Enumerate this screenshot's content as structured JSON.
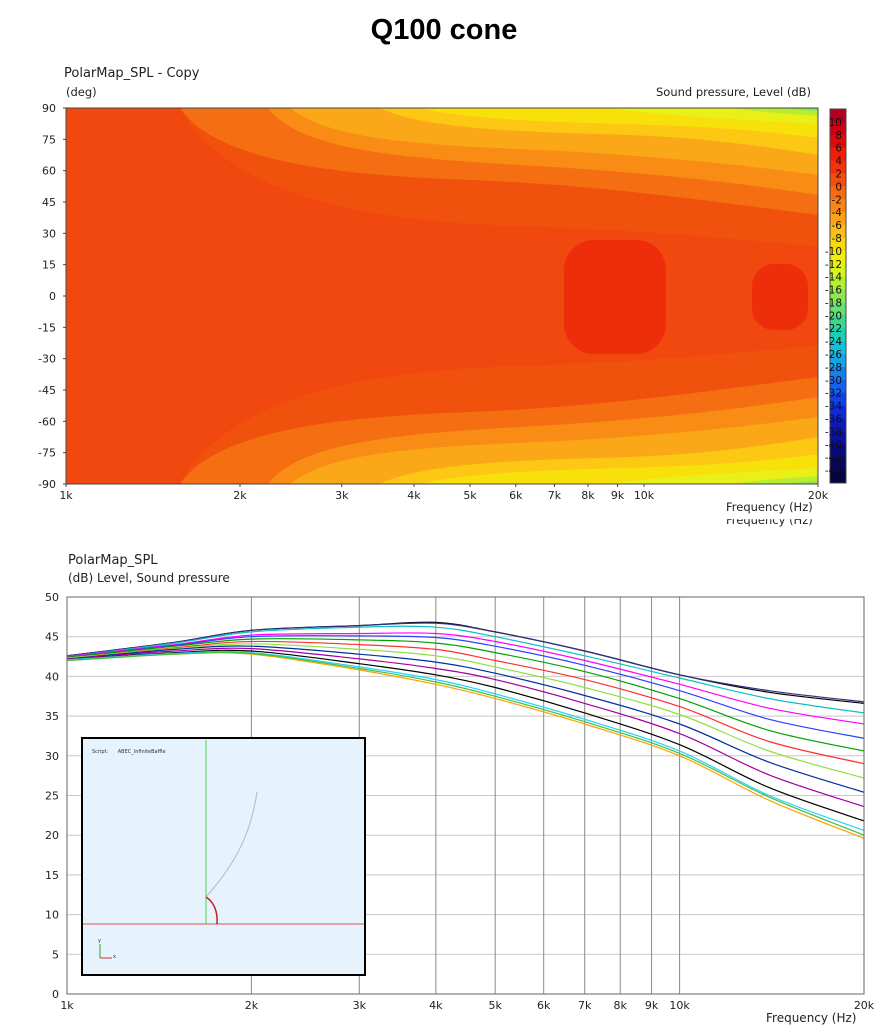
{
  "page_title": "Q100 cone",
  "chart_data": [
    {
      "type": "heatmap",
      "title": "PolarMap_SPL - Copy",
      "ylabel": "(deg)",
      "colorbar_label": "Sound pressure, Level  (dB)",
      "xlabel": "Frequency  (Hz)",
      "xlabel_ghost": "Frequency  (Hz)",
      "x_scale": "log",
      "xlim": [
        1000,
        20000
      ],
      "ylim": [
        -90,
        90
      ],
      "x_ticks": [
        {
          "value": 1000,
          "label": "1k"
        },
        {
          "value": 2000,
          "label": "2k"
        },
        {
          "value": 3000,
          "label": "3k"
        },
        {
          "value": 4000,
          "label": "4k"
        },
        {
          "value": 5000,
          "label": "5k"
        },
        {
          "value": 6000,
          "label": "6k"
        },
        {
          "value": 7000,
          "label": "7k"
        },
        {
          "value": 8000,
          "label": "8k"
        },
        {
          "value": 9000,
          "label": "9k"
        },
        {
          "value": 10000,
          "label": "10k"
        },
        {
          "value": 20000,
          "label": "20k"
        }
      ],
      "y_ticks": [
        90,
        75,
        60,
        45,
        30,
        15,
        0,
        -15,
        -30,
        -45,
        -60,
        -75,
        -90
      ],
      "colorbar_ticks": [
        10,
        8,
        6,
        4,
        2,
        0,
        -2,
        -4,
        -6,
        -8,
        -10,
        -12,
        -14,
        -16,
        -18,
        -20,
        -22,
        -24,
        -26,
        -28,
        -30,
        -32,
        -34,
        -36,
        -38,
        -40,
        -42,
        -44
      ],
      "colorbar_colors": [
        "#b0001c",
        "#cc0014",
        "#e00a0a",
        "#ee1e0a",
        "#f5300a",
        "#f54d0f",
        "#f86a12",
        "#fa8514",
        "#fba318",
        "#fcbd14",
        "#f8d80a",
        "#f0ec0c",
        "#d8f41e",
        "#b4f032",
        "#8ce850",
        "#66e070",
        "#3cd890",
        "#18d0b4",
        "#10c0d8",
        "#14a4e8",
        "#1480ee",
        "#1460f0",
        "#1040e8",
        "#1028d8",
        "#0c18c0",
        "#0a10a0",
        "#080a80",
        "#060660",
        "#040440"
      ],
      "colorbar_range": [
        -46,
        12
      ],
      "grid": false,
      "description_regions": [
        {
          "name": "on-axis low band",
          "level_db": -1
        },
        {
          "name": "hotspot near 8k",
          "level_db": 1
        },
        {
          "name": "hotspot near 16k",
          "level_db": 1
        }
      ]
    },
    {
      "type": "line",
      "title": "PolarMap_SPL",
      "ylabel": "(dB)  Level, Sound pressure",
      "xlabel": "Frequency  (Hz)",
      "x_scale": "log",
      "xlim": [
        1000,
        20000
      ],
      "ylim": [
        0,
        50
      ],
      "y_ticks": [
        0,
        5,
        10,
        15,
        20,
        25,
        30,
        35,
        40,
        45,
        50
      ],
      "x_ticks": [
        {
          "value": 1000,
          "label": "1k"
        },
        {
          "value": 2000,
          "label": "2k"
        },
        {
          "value": 3000,
          "label": "3k"
        },
        {
          "value": 4000,
          "label": "4k"
        },
        {
          "value": 5000,
          "label": "5k"
        },
        {
          "value": 6000,
          "label": "6k"
        },
        {
          "value": 7000,
          "label": "7k"
        },
        {
          "value": 8000,
          "label": "8k"
        },
        {
          "value": 9000,
          "label": "9k"
        },
        {
          "value": 10000,
          "label": "10k"
        },
        {
          "value": 20000,
          "label": "20k"
        }
      ],
      "grid": true,
      "x": [
        1000,
        1500,
        2000,
        3000,
        4000,
        5000,
        7000,
        10000,
        14000,
        20000
      ],
      "series": [
        {
          "color": "#000000",
          "values": [
            42.6,
            44.3,
            45.8,
            46.4,
            46.8,
            45.6,
            43.2,
            40.2,
            38.0,
            36.6
          ]
        },
        {
          "color": "#303080",
          "values": [
            42.6,
            44.3,
            45.8,
            46.4,
            46.7,
            45.6,
            43.2,
            40.2,
            38.2,
            36.8
          ]
        },
        {
          "color": "#10c0c0",
          "values": [
            42.5,
            44.2,
            45.6,
            46.2,
            46.2,
            45.0,
            42.6,
            39.8,
            37.2,
            35.4
          ]
        },
        {
          "color": "#ff00ff",
          "values": [
            42.5,
            44.0,
            45.2,
            45.4,
            45.4,
            44.4,
            42.0,
            39.0,
            36.0,
            34.0
          ]
        },
        {
          "color": "#3040ff",
          "values": [
            42.4,
            43.9,
            45.0,
            45.1,
            44.9,
            43.8,
            41.4,
            38.2,
            34.6,
            32.2
          ]
        },
        {
          "color": "#00a000",
          "values": [
            42.4,
            43.8,
            44.7,
            44.6,
            44.2,
            43.0,
            40.6,
            37.2,
            33.2,
            30.6
          ]
        },
        {
          "color": "#ff3030",
          "values": [
            42.3,
            43.6,
            44.4,
            44.0,
            43.4,
            42.0,
            39.6,
            36.2,
            31.8,
            29.0
          ]
        },
        {
          "color": "#90e040",
          "values": [
            42.3,
            43.5,
            44.1,
            43.4,
            42.6,
            41.2,
            38.6,
            35.2,
            30.6,
            27.2
          ]
        },
        {
          "color": "#0030a0",
          "values": [
            42.2,
            43.4,
            43.8,
            42.8,
            41.8,
            40.4,
            37.6,
            34.0,
            29.2,
            25.4
          ]
        },
        {
          "color": "#a000a0",
          "values": [
            42.2,
            43.2,
            43.5,
            42.2,
            41.0,
            39.6,
            36.6,
            32.8,
            27.6,
            23.6
          ]
        },
        {
          "color": "#000000",
          "values": [
            42.1,
            43.0,
            43.2,
            41.6,
            40.2,
            38.6,
            35.4,
            31.4,
            26.0,
            21.8
          ]
        },
        {
          "color": "#20d0ff",
          "values": [
            42.1,
            42.9,
            43.0,
            41.2,
            39.6,
            37.8,
            34.6,
            30.6,
            25.0,
            20.6
          ]
        },
        {
          "color": "#ffa000",
          "values": [
            42.0,
            42.8,
            42.8,
            40.8,
            39.0,
            37.2,
            34.0,
            30.0,
            24.4,
            19.6
          ]
        },
        {
          "color": "#40c040",
          "values": [
            42.0,
            42.8,
            42.9,
            41.0,
            39.3,
            37.5,
            34.3,
            30.3,
            24.8,
            20.0
          ]
        }
      ]
    }
  ],
  "inset": {
    "script_label": "Script:",
    "script_name": "ABEC_InfiniteBaffle",
    "axis_y": "y",
    "axis_x": "x"
  }
}
